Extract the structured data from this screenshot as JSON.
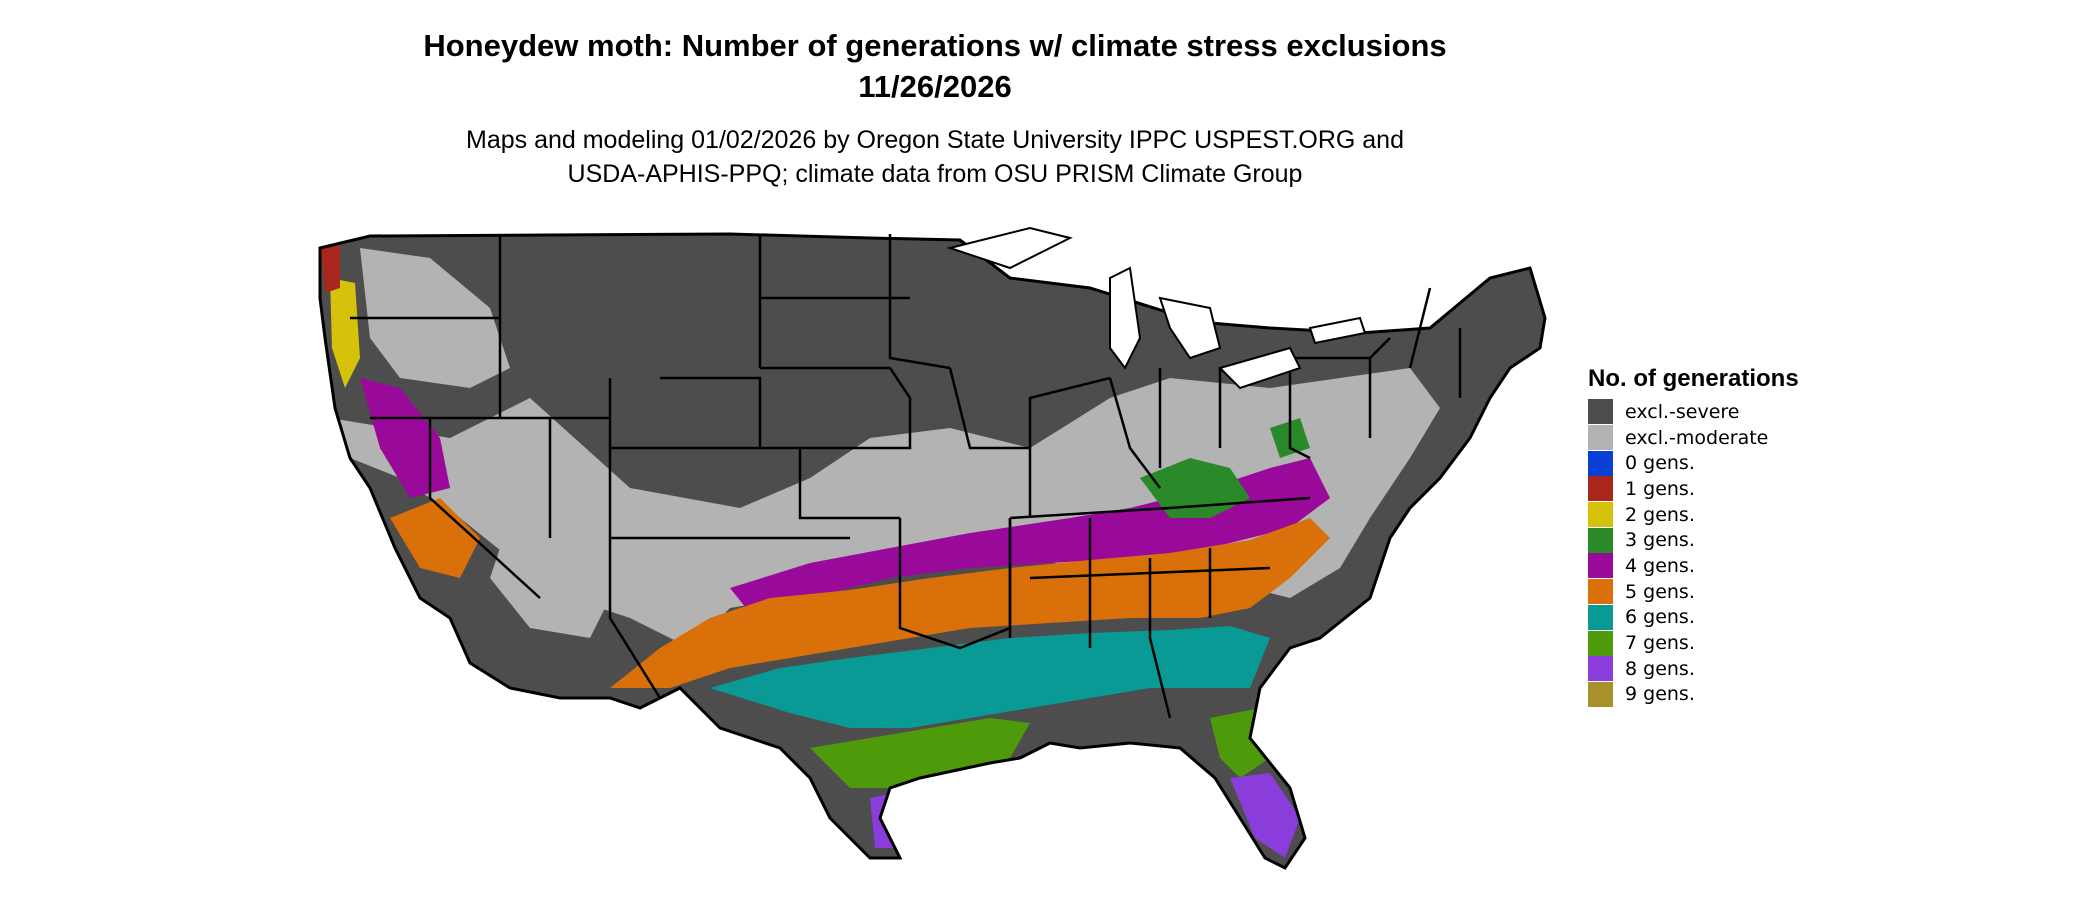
{
  "title_line1": "Honeydew moth: Number of generations w/ climate stress exclusions",
  "title_line2": "11/26/2026",
  "subtitle_line1": "Maps and modeling 01/02/2026 by Oregon State University IPPC USPEST.ORG and",
  "subtitle_line2": "USDA-APHIS-PPQ; climate data from OSU PRISM Climate Group",
  "legend": {
    "title": "No. of generations",
    "items": [
      {
        "label": "excl.-severe",
        "color": "#4d4d4d"
      },
      {
        "label": "excl.-moderate",
        "color": "#b3b3b3"
      },
      {
        "label": "0 gens.",
        "color": "#0a3fd6"
      },
      {
        "label": "1 gens.",
        "color": "#a8261c"
      },
      {
        "label": "2 gens.",
        "color": "#d6c20a"
      },
      {
        "label": "3 gens.",
        "color": "#2a8a2a"
      },
      {
        "label": "4 gens.",
        "color": "#9a0a9a"
      },
      {
        "label": "5 gens.",
        "color": "#d9700a"
      },
      {
        "label": "6 gens.",
        "color": "#0a9a96"
      },
      {
        "label": "7 gens.",
        "color": "#4e9a0a"
      },
      {
        "label": "8 gens.",
        "color": "#8a3ddb"
      },
      {
        "label": "9 gens.",
        "color": "#a8902a"
      }
    ]
  }
}
